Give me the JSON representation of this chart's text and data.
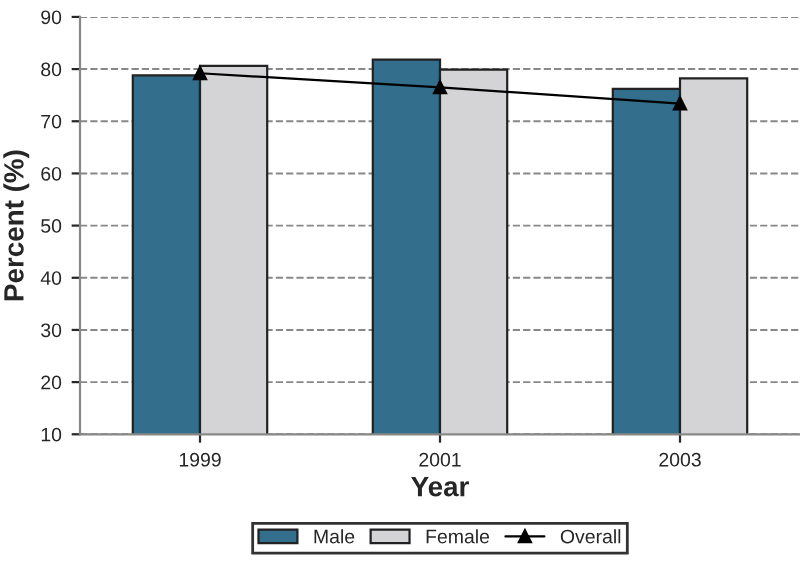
{
  "chart_data": {
    "type": "bar",
    "xlabel": "Year",
    "ylabel": "Percent (%)",
    "categories": [
      "1999",
      "2001",
      "2003"
    ],
    "series": [
      {
        "name": "Male",
        "color": "#336e8c",
        "values": [
          78.8,
          81.8,
          76.2
        ]
      },
      {
        "name": "Female",
        "color": "#d4d4d6",
        "values": [
          80.6,
          79.9,
          78.2
        ]
      },
      {
        "name": "Overall",
        "type": "line",
        "color": "#000000",
        "marker": "triangle",
        "values": [
          79.2,
          76.5,
          73.4
        ]
      }
    ],
    "ylim": [
      10,
      90
    ],
    "yticks": [
      10,
      20,
      30,
      40,
      50,
      60,
      70,
      80,
      90
    ],
    "grid": "y",
    "legend": "bottom"
  }
}
